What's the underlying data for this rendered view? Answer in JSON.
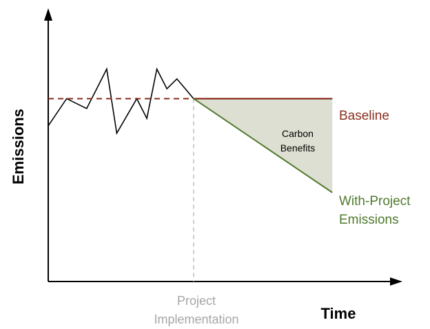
{
  "chart_data": {
    "type": "line",
    "title": "",
    "ylabel": "Emissions",
    "xlabel": "Time",
    "grid": false,
    "legend": "none",
    "implementation_label_line1": "Project",
    "implementation_label_line2": "Implementation",
    "benefit_label_line1": "Carbon",
    "benefit_label_line2": "Benefits",
    "baseline_label": "Baseline",
    "with_project_label_line1": "With-Project",
    "with_project_label_line2": "Emissions",
    "colors": {
      "axis": "#000000",
      "historical": "#000000",
      "baseline": "#8b2e1e",
      "with_project": "#4f7a2c",
      "benefit_fill": "#dcdfd1",
      "implementation_guide": "#bfbfbf"
    },
    "xlim": [
      0,
      100
    ],
    "ylim": [
      0,
      100
    ],
    "implementation_x": 43.5,
    "series": [
      {
        "key": "historical",
        "x": [
          0,
          5.5,
          11.5,
          17.5,
          20.5,
          26.5,
          29.5,
          32.5,
          35.5,
          38.5,
          43.5
        ],
        "y": [
          63,
          74,
          70,
          86,
          60,
          74,
          66,
          86,
          78,
          82,
          74
        ]
      },
      {
        "key": "baseline_projection",
        "x": [
          0,
          43.5
        ],
        "y": [
          74,
          74
        ]
      },
      {
        "key": "baseline",
        "x": [
          43.5,
          85
        ],
        "y": [
          74,
          74
        ]
      },
      {
        "key": "with_project",
        "x": [
          43.5,
          85
        ],
        "y": [
          74,
          36
        ]
      }
    ]
  }
}
